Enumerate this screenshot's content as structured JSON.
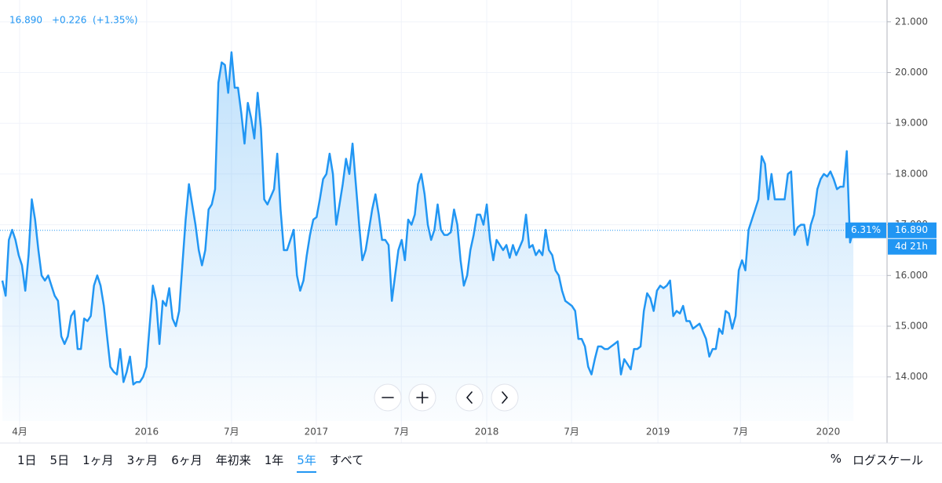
{
  "chart_data": {
    "type": "line",
    "header": {
      "change": "+0.226",
      "change_pct": "(+1.35%)"
    },
    "last_price": {
      "value": 16.89,
      "label": "16.890"
    },
    "price_tag_pct": "6.31%",
    "countdown": "4d 21h",
    "series": [
      {
        "color": "#2196f3",
        "values": [
          15.9,
          15.6,
          16.7,
          16.9,
          16.7,
          16.4,
          16.2,
          15.7,
          16.4,
          17.5,
          17.1,
          16.5,
          16.0,
          15.9,
          16.0,
          15.8,
          15.6,
          15.5,
          14.8,
          14.65,
          14.8,
          15.2,
          15.3,
          14.55,
          14.55,
          15.15,
          15.1,
          15.2,
          15.8,
          16.0,
          15.8,
          15.4,
          14.8,
          14.2,
          14.1,
          14.05,
          14.55,
          13.9,
          14.1,
          14.4,
          13.85,
          13.9,
          13.9,
          14.0,
          14.2,
          15.0,
          15.8,
          15.5,
          14.65,
          15.5,
          15.4,
          15.75,
          15.15,
          15.0,
          15.3,
          16.2,
          17.1,
          17.8,
          17.4,
          17.0,
          16.5,
          16.2,
          16.5,
          17.3,
          17.4,
          17.7,
          19.8,
          20.2,
          20.15,
          19.6,
          20.4,
          19.7,
          19.7,
          19.2,
          18.6,
          19.4,
          19.1,
          18.7,
          19.6,
          18.9,
          17.5,
          17.4,
          17.55,
          17.7,
          18.4,
          17.3,
          16.5,
          16.5,
          16.7,
          16.9,
          16.0,
          15.7,
          15.9,
          16.4,
          16.8,
          17.1,
          17.15,
          17.5,
          17.9,
          18.0,
          18.4,
          18.0,
          17.0,
          17.4,
          17.8,
          18.3,
          18.0,
          18.6,
          17.8,
          17.0,
          16.3,
          16.5,
          16.9,
          17.3,
          17.6,
          17.2,
          16.7,
          16.7,
          16.6,
          15.5,
          16.0,
          16.5,
          16.7,
          16.3,
          17.1,
          17.0,
          17.2,
          17.8,
          18.0,
          17.6,
          17.0,
          16.7,
          16.9,
          17.4,
          16.9,
          16.8,
          16.8,
          16.85,
          17.3,
          17.0,
          16.3,
          15.8,
          16.0,
          16.5,
          16.8,
          17.2,
          17.2,
          17.0,
          17.4,
          16.7,
          16.3,
          16.7,
          16.6,
          16.5,
          16.6,
          16.35,
          16.6,
          16.4,
          16.55,
          16.7,
          17.2,
          16.55,
          16.6,
          16.4,
          16.5,
          16.4,
          16.9,
          16.5,
          16.4,
          16.1,
          16.0,
          15.7,
          15.5,
          15.45,
          15.4,
          15.3,
          14.75,
          14.75,
          14.6,
          14.2,
          14.05,
          14.35,
          14.6,
          14.6,
          14.55,
          14.55,
          14.6,
          14.65,
          14.7,
          14.05,
          14.35,
          14.25,
          14.15,
          14.55,
          14.55,
          14.6,
          15.3,
          15.65,
          15.55,
          15.3,
          15.7,
          15.8,
          15.75,
          15.8,
          15.9,
          15.2,
          15.3,
          15.25,
          15.4,
          15.1,
          15.1,
          14.95,
          15.0,
          15.05,
          14.9,
          14.75,
          14.4,
          14.55,
          14.55,
          14.95,
          14.85,
          15.3,
          15.25,
          14.95,
          15.2,
          16.1,
          16.3,
          16.1,
          16.9,
          17.1,
          17.3,
          17.5,
          18.35,
          18.2,
          17.5,
          18.0,
          17.5,
          17.5,
          17.5,
          17.5,
          18.0,
          18.05,
          16.8,
          16.95,
          17.0,
          17.0,
          16.6,
          17.0,
          17.2,
          17.7,
          17.9,
          18.0,
          17.95,
          18.05,
          17.9,
          17.7,
          17.75,
          17.75,
          18.45,
          16.65,
          16.89
        ]
      }
    ],
    "xlim": [
      -0.72,
      270.3
    ],
    "xticks": [
      {
        "value": 5.28,
        "label": "4月"
      },
      {
        "value": 44.1,
        "label": "2016"
      },
      {
        "value": 70.0,
        "label": "7月"
      },
      {
        "value": 95.9,
        "label": "2017"
      },
      {
        "value": 121.9,
        "label": "7月"
      },
      {
        "value": 148.0,
        "label": "2018"
      },
      {
        "value": 173.9,
        "label": "7月"
      },
      {
        "value": 200.3,
        "label": "2019"
      },
      {
        "value": 225.5,
        "label": "7月"
      },
      {
        "value": 252.3,
        "label": "2020"
      }
    ],
    "ylim": [
      13.13,
      21.43
    ],
    "yticks": [
      {
        "value": 14,
        "label": "14.000"
      },
      {
        "value": 15,
        "label": "15.000"
      },
      {
        "value": 16,
        "label": "16.000"
      },
      {
        "value": 17,
        "label": "17.000"
      },
      {
        "value": 18,
        "label": "18.000"
      },
      {
        "value": 19,
        "label": "19.000"
      },
      {
        "value": 20,
        "label": "20.000"
      },
      {
        "value": 21,
        "label": "21.000"
      }
    ],
    "grid": true
  },
  "toolbar": {
    "ranges": [
      "1日",
      "5日",
      "1ヶ月",
      "3ヶ月",
      "6ヶ月",
      "年初来",
      "1年",
      "5年",
      "すべて"
    ],
    "active_range": 7,
    "percent": "%",
    "log_scale": "ログスケール"
  }
}
